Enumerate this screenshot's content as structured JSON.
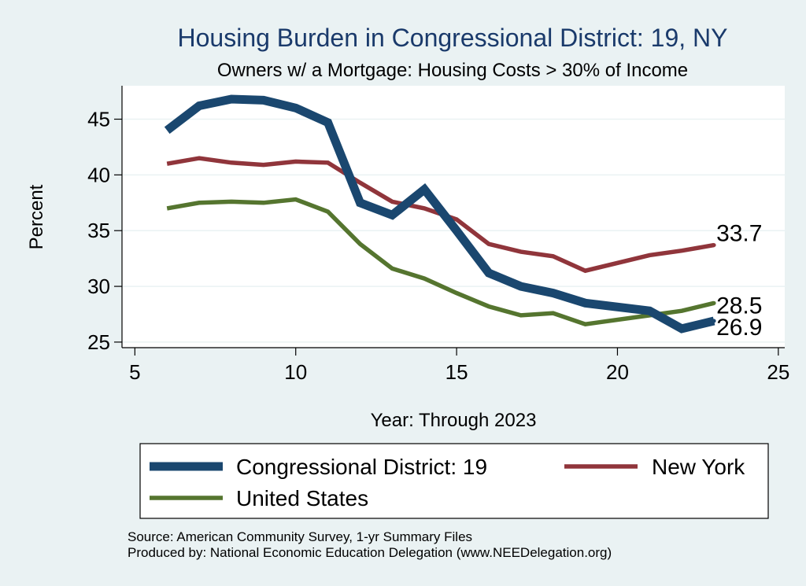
{
  "chart_data": {
    "type": "line",
    "title": "Housing Burden in Congressional District:  19, NY",
    "subtitle": "Owners w/ a Mortgage: Housing Costs > 30% of Income",
    "xlabel": "Year: Through 2023",
    "ylabel": "Percent",
    "xlim": [
      5,
      25
    ],
    "ylim": [
      24.5,
      48
    ],
    "xticks": [
      "5",
      "10",
      "15",
      "20",
      "25"
    ],
    "yticks": [
      "25",
      "30",
      "35",
      "40",
      "45"
    ],
    "grid": true,
    "legend_position": "bottom",
    "x": [
      6,
      7,
      8,
      9,
      10,
      11,
      12,
      13,
      14,
      15,
      16,
      17,
      18,
      19,
      21,
      22,
      23
    ],
    "series": [
      {
        "name": "Congressional District:  19",
        "color": "#1a476f",
        "x": [
          6,
          7,
          8,
          9,
          10,
          11,
          12,
          13,
          14,
          15,
          16,
          17,
          18,
          19,
          21,
          22,
          23
        ],
        "values": [
          44.0,
          46.2,
          46.8,
          46.7,
          46.0,
          44.7,
          37.5,
          36.4,
          38.7,
          35.0,
          31.2,
          30.0,
          29.4,
          28.5,
          27.8,
          26.2,
          26.9
        ],
        "end_label": "26.9"
      },
      {
        "name": "New York",
        "color": "#90353b",
        "x": [
          6,
          7,
          8,
          9,
          10,
          11,
          12,
          13,
          14,
          15,
          16,
          17,
          18,
          19,
          21,
          22,
          23
        ],
        "values": [
          41.0,
          41.5,
          41.1,
          40.9,
          41.2,
          41.1,
          39.3,
          37.6,
          37.0,
          36.0,
          33.8,
          33.1,
          32.7,
          31.4,
          32.8,
          33.2,
          33.7
        ],
        "end_label": "33.7"
      },
      {
        "name": "United States",
        "color": "#55752f",
        "x": [
          6,
          7,
          8,
          9,
          10,
          11,
          12,
          13,
          14,
          15,
          16,
          17,
          18,
          19,
          21,
          22,
          23
        ],
        "values": [
          37.0,
          37.5,
          37.6,
          37.5,
          37.8,
          36.7,
          33.8,
          31.6,
          30.7,
          29.4,
          28.2,
          27.4,
          27.6,
          26.6,
          27.4,
          27.8,
          28.5
        ],
        "end_label": "28.5"
      }
    ]
  },
  "notes": {
    "source": "Source: American Community Survey, 1-yr Summary Files",
    "produced_by": "Produced by: National Economic Education Delegation (www.NEEDelegation.org)"
  }
}
